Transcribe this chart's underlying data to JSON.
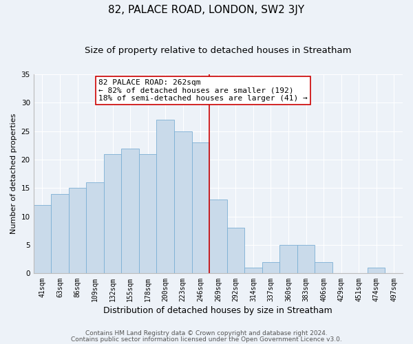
{
  "title": "82, PALACE ROAD, LONDON, SW2 3JY",
  "subtitle": "Size of property relative to detached houses in Streatham",
  "xlabel": "Distribution of detached houses by size in Streatham",
  "ylabel": "Number of detached properties",
  "categories": [
    "41sqm",
    "63sqm",
    "86sqm",
    "109sqm",
    "132sqm",
    "155sqm",
    "178sqm",
    "200sqm",
    "223sqm",
    "246sqm",
    "269sqm",
    "292sqm",
    "314sqm",
    "337sqm",
    "360sqm",
    "383sqm",
    "406sqm",
    "429sqm",
    "451sqm",
    "474sqm",
    "497sqm"
  ],
  "values": [
    12,
    14,
    15,
    16,
    21,
    22,
    21,
    27,
    25,
    23,
    13,
    8,
    1,
    2,
    5,
    5,
    2,
    0,
    0,
    1,
    0
  ],
  "bar_color": "#c9daea",
  "bar_edge_color": "#7bafd4",
  "vline_x_idx": 9.5,
  "vline_color": "#cc0000",
  "annotation_line1": "82 PALACE ROAD: 262sqm",
  "annotation_line2": "← 82% of detached houses are smaller (192)",
  "annotation_line3": "18% of semi-detached houses are larger (41) →",
  "bg_color": "#edf2f8",
  "plot_bg_color": "#edf2f8",
  "grid_color": "#ffffff",
  "footer1": "Contains HM Land Registry data © Crown copyright and database right 2024.",
  "footer2": "Contains public sector information licensed under the Open Government Licence v3.0.",
  "ylim": [
    0,
    35
  ],
  "yticks": [
    0,
    5,
    10,
    15,
    20,
    25,
    30,
    35
  ],
  "title_fontsize": 11,
  "subtitle_fontsize": 9.5,
  "xlabel_fontsize": 9,
  "ylabel_fontsize": 8,
  "tick_fontsize": 7,
  "footer_fontsize": 6.5,
  "annotation_fontsize": 8
}
